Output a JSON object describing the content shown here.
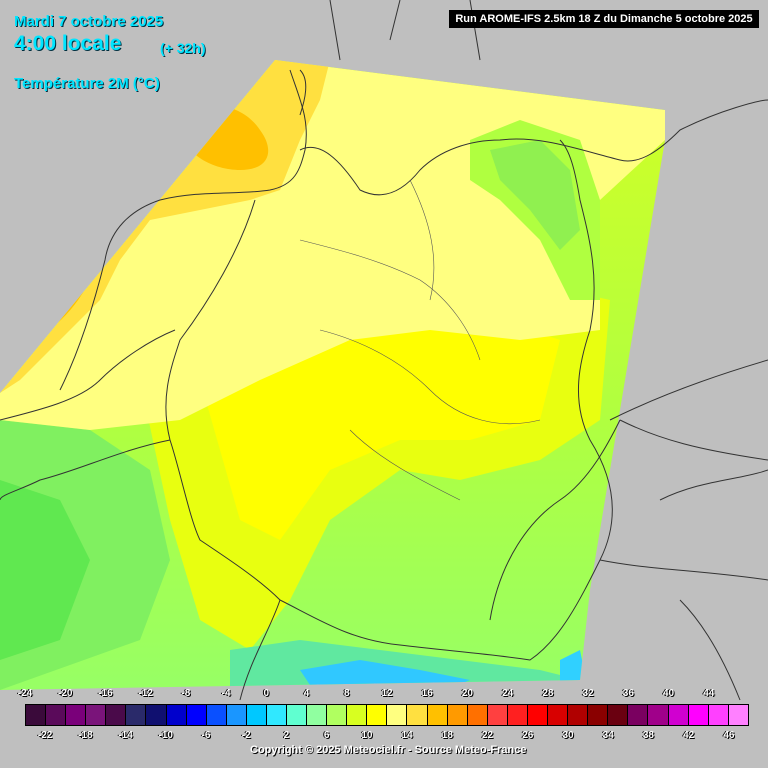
{
  "header": {
    "date": "Mardi 7 octobre 2025",
    "time": "4:00 locale",
    "lead": "(+ 32h)",
    "parameter": "Température 2M (°C)"
  },
  "run_info": "Run AROME-IFS 2.5km 18 Z du Dimanche 5 octobre 2025",
  "legend": {
    "top_ticks": [
      "-24",
      "-20",
      "-16",
      "-12",
      "-8",
      "-4",
      "0",
      "4",
      "8",
      "12",
      "16",
      "20",
      "24",
      "28",
      "32",
      "36",
      "40",
      "44"
    ],
    "bottom_ticks": [
      "-22",
      "-18",
      "-14",
      "-10",
      "-6",
      "-2",
      "2",
      "6",
      "10",
      "14",
      "18",
      "22",
      "26",
      "30",
      "34",
      "38",
      "42",
      "46"
    ],
    "colors": [
      "#3a0a3a",
      "#5a0a5a",
      "#7a007a",
      "#7a147a",
      "#4a0a4a",
      "#2a2a6a",
      "#101070",
      "#0000cc",
      "#0000ff",
      "#0a50ff",
      "#1a96ff",
      "#00c8ff",
      "#30e8ff",
      "#60ffd0",
      "#90ffa0",
      "#b0ff60",
      "#d8ff20",
      "#ffff00",
      "#ffff80",
      "#ffe040",
      "#ffc000",
      "#ff9a00",
      "#ff7000",
      "#ff4040",
      "#ff2020",
      "#ff0000",
      "#d80000",
      "#b00000",
      "#8a0000",
      "#6a0010",
      "#7a0060",
      "#a0008a",
      "#d000d0",
      "#ff00ff",
      "#ff40ff",
      "#ff80ff"
    ]
  },
  "copyright": "Copyright © 2025 Meteociel.fr - Source Meteo-France"
}
